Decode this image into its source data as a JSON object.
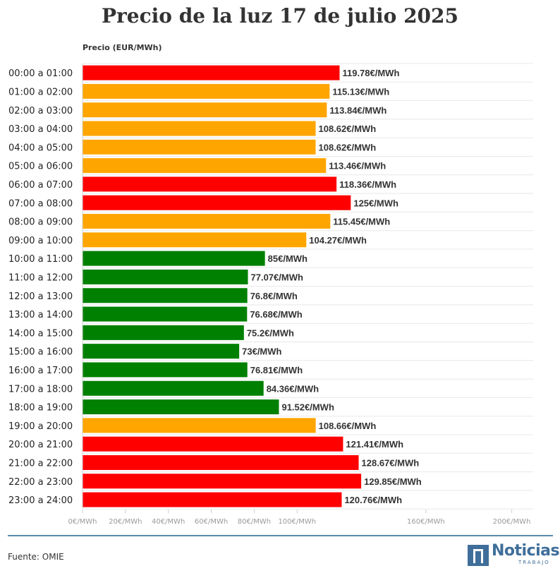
{
  "chart_data": {
    "type": "bar",
    "orientation": "horizontal",
    "title": "Precio de la luz 17 de julio 2025",
    "ylabel": "Precio (EUR/MWh)",
    "xlabel": "",
    "xlim": [
      0,
      210
    ],
    "x_ticks": [
      {
        "value": 0,
        "label": "0€/MWh"
      },
      {
        "value": 20,
        "label": "20€/MWh"
      },
      {
        "value": 40,
        "label": "40€/MWh"
      },
      {
        "value": 60,
        "label": "60€/MWh"
      },
      {
        "value": 80,
        "label": "80€/MWh"
      },
      {
        "value": 100,
        "label": "100€/MWh"
      },
      {
        "value": 160,
        "label": "160€/MWh"
      },
      {
        "value": 200,
        "label": "200€/MWh"
      }
    ],
    "categories": [
      "00:00 a 01:00",
      "01:00 a 02:00",
      "02:00 a 03:00",
      "03:00 a 04:00",
      "04:00 a 05:00",
      "05:00 a 06:00",
      "06:00 a 07:00",
      "07:00 a 08:00",
      "08:00 a 09:00",
      "09:00 a 10:00",
      "10:00 a 11:00",
      "11:00 a 12:00",
      "12:00 a 13:00",
      "13:00 a 14:00",
      "14:00 a 15:00",
      "15:00 a 16:00",
      "16:00 a 17:00",
      "17:00 a 18:00",
      "18:00 a 19:00",
      "19:00 a 20:00",
      "20:00 a 21:00",
      "21:00 a 22:00",
      "22:00 a 23:00",
      "23:00 a 24:00"
    ],
    "values": [
      119.78,
      115.13,
      113.84,
      108.62,
      108.62,
      113.46,
      118.36,
      125,
      115.45,
      104.27,
      85,
      77.07,
      76.8,
      76.68,
      75.2,
      73,
      76.81,
      84.36,
      91.52,
      108.66,
      121.41,
      128.67,
      129.85,
      120.76
    ],
    "value_labels": [
      "119.78€/MWh",
      "115.13€/MWh",
      "113.84€/MWh",
      "108.62€/MWh",
      "108.62€/MWh",
      "113.46€/MWh",
      "118.36€/MWh",
      "125€/MWh",
      "115.45€/MWh",
      "104.27€/MWh",
      "85€/MWh",
      "77.07€/MWh",
      "76.8€/MWh",
      "76.68€/MWh",
      "75.2€/MWh",
      "73€/MWh",
      "76.81€/MWh",
      "84.36€/MWh",
      "91.52€/MWh",
      "108.66€/MWh",
      "121.41€/MWh",
      "128.67€/MWh",
      "129.85€/MWh",
      "120.76€/MWh"
    ],
    "bar_colors": [
      "#ff0000",
      "#ffa500",
      "#ffa500",
      "#ffa500",
      "#ffa500",
      "#ffa500",
      "#ff0000",
      "#ff0000",
      "#ffa500",
      "#ffa500",
      "#008000",
      "#008000",
      "#008000",
      "#008000",
      "#008000",
      "#008000",
      "#008000",
      "#008000",
      "#008000",
      "#ffa500",
      "#ff0000",
      "#ff0000",
      "#ff0000",
      "#ff0000"
    ],
    "grid": true
  },
  "footer": {
    "source": "Fuente: OMIE",
    "logo_word": "Noticias",
    "logo_sub": "TRABAJO"
  },
  "colors": {
    "title": "#333333",
    "rule": "#5b8aaa",
    "brand": "#3f6e9a"
  }
}
